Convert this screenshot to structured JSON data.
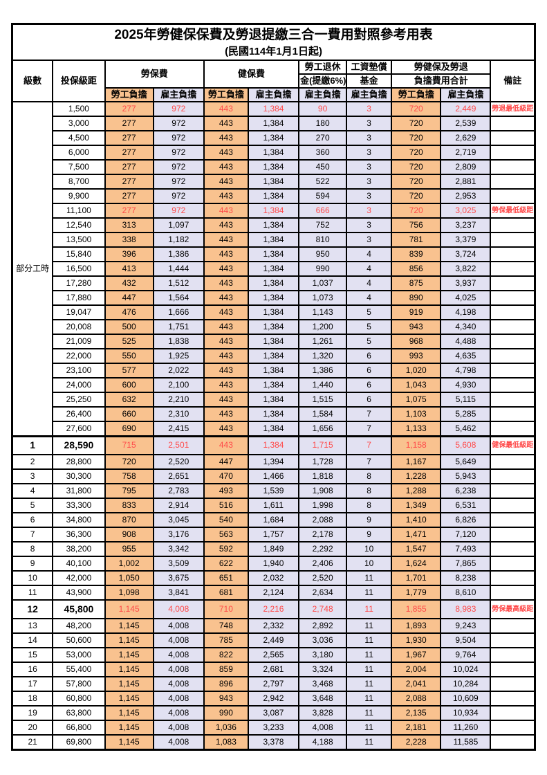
{
  "title": "2025年勞健保保費及勞退提繳三合一費用對照參考用表",
  "subtitle": "(民國114年1月1日起)",
  "colors": {
    "employee_bg": "#F9C28F",
    "employer_bg": "#E2E1F2",
    "highlight_text": "#FF4A4A",
    "border": "#000000"
  },
  "header": {
    "level": "級數",
    "bracket": "投保級距",
    "labor": "勞保費",
    "health": "健保費",
    "pension_line1": "勞工退休",
    "pension_line2": "金(提繳6%)",
    "wage_fund_line1": "工資墊償",
    "wage_fund_line2": "基金",
    "total_line1": "勞健保及勞退",
    "total_line2": "負擔費用合計",
    "remark": "備註",
    "employee_share": "勞工負擔",
    "employer_share": "雇主負擔"
  },
  "part_time_label": "部分工時",
  "rows": [
    {
      "lv": "",
      "bracket": "1,500",
      "c": [
        "277",
        "972",
        "443",
        "1,384",
        "90",
        "3",
        "720",
        "2,449"
      ],
      "note": "勞退最低級距",
      "hl": true,
      "emph": false
    },
    {
      "lv": "",
      "bracket": "3,000",
      "c": [
        "277",
        "972",
        "443",
        "1,384",
        "180",
        "3",
        "720",
        "2,539"
      ],
      "note": "",
      "hl": false,
      "emph": false
    },
    {
      "lv": "",
      "bracket": "4,500",
      "c": [
        "277",
        "972",
        "443",
        "1,384",
        "270",
        "3",
        "720",
        "2,629"
      ],
      "note": "",
      "hl": false,
      "emph": false
    },
    {
      "lv": "",
      "bracket": "6,000",
      "c": [
        "277",
        "972",
        "443",
        "1,384",
        "360",
        "3",
        "720",
        "2,719"
      ],
      "note": "",
      "hl": false,
      "emph": false
    },
    {
      "lv": "",
      "bracket": "7,500",
      "c": [
        "277",
        "972",
        "443",
        "1,384",
        "450",
        "3",
        "720",
        "2,809"
      ],
      "note": "",
      "hl": false,
      "emph": false
    },
    {
      "lv": "",
      "bracket": "8,700",
      "c": [
        "277",
        "972",
        "443",
        "1,384",
        "522",
        "3",
        "720",
        "2,881"
      ],
      "note": "",
      "hl": false,
      "emph": false
    },
    {
      "lv": "",
      "bracket": "9,900",
      "c": [
        "277",
        "972",
        "443",
        "1,384",
        "594",
        "3",
        "720",
        "2,953"
      ],
      "note": "",
      "hl": false,
      "emph": false
    },
    {
      "lv": "",
      "bracket": "11,100",
      "c": [
        "277",
        "972",
        "443",
        "1,384",
        "666",
        "3",
        "720",
        "3,025"
      ],
      "note": "勞保最低級距",
      "hl": true,
      "emph": false
    },
    {
      "lv": "",
      "bracket": "12,540",
      "c": [
        "313",
        "1,097",
        "443",
        "1,384",
        "752",
        "3",
        "756",
        "3,237"
      ],
      "note": "",
      "hl": false,
      "emph": false
    },
    {
      "lv": "",
      "bracket": "13,500",
      "c": [
        "338",
        "1,182",
        "443",
        "1,384",
        "810",
        "3",
        "781",
        "3,379"
      ],
      "note": "",
      "hl": false,
      "emph": false
    },
    {
      "lv": "",
      "bracket": "15,840",
      "c": [
        "396",
        "1,386",
        "443",
        "1,384",
        "950",
        "4",
        "839",
        "3,724"
      ],
      "note": "",
      "hl": false,
      "emph": false
    },
    {
      "lv": "",
      "bracket": "16,500",
      "c": [
        "413",
        "1,444",
        "443",
        "1,384",
        "990",
        "4",
        "856",
        "3,822"
      ],
      "note": "",
      "hl": false,
      "emph": false
    },
    {
      "lv": "",
      "bracket": "17,280",
      "c": [
        "432",
        "1,512",
        "443",
        "1,384",
        "1,037",
        "4",
        "875",
        "3,937"
      ],
      "note": "",
      "hl": false,
      "emph": false
    },
    {
      "lv": "",
      "bracket": "17,880",
      "c": [
        "447",
        "1,564",
        "443",
        "1,384",
        "1,073",
        "4",
        "890",
        "4,025"
      ],
      "note": "",
      "hl": false,
      "emph": false
    },
    {
      "lv": "",
      "bracket": "19,047",
      "c": [
        "476",
        "1,666",
        "443",
        "1,384",
        "1,143",
        "5",
        "919",
        "4,198"
      ],
      "note": "",
      "hl": false,
      "emph": false
    },
    {
      "lv": "",
      "bracket": "20,008",
      "c": [
        "500",
        "1,751",
        "443",
        "1,384",
        "1,200",
        "5",
        "943",
        "4,340"
      ],
      "note": "",
      "hl": false,
      "emph": false
    },
    {
      "lv": "",
      "bracket": "21,009",
      "c": [
        "525",
        "1,838",
        "443",
        "1,384",
        "1,261",
        "5",
        "968",
        "4,488"
      ],
      "note": "",
      "hl": false,
      "emph": false
    },
    {
      "lv": "",
      "bracket": "22,000",
      "c": [
        "550",
        "1,925",
        "443",
        "1,384",
        "1,320",
        "6",
        "993",
        "4,635"
      ],
      "note": "",
      "hl": false,
      "emph": false
    },
    {
      "lv": "",
      "bracket": "23,100",
      "c": [
        "577",
        "2,022",
        "443",
        "1,384",
        "1,386",
        "6",
        "1,020",
        "4,798"
      ],
      "note": "",
      "hl": false,
      "emph": false
    },
    {
      "lv": "",
      "bracket": "24,000",
      "c": [
        "600",
        "2,100",
        "443",
        "1,384",
        "1,440",
        "6",
        "1,043",
        "4,930"
      ],
      "note": "",
      "hl": false,
      "emph": false
    },
    {
      "lv": "",
      "bracket": "25,250",
      "c": [
        "632",
        "2,210",
        "443",
        "1,384",
        "1,515",
        "6",
        "1,075",
        "5,115"
      ],
      "note": "",
      "hl": false,
      "emph": false
    },
    {
      "lv": "",
      "bracket": "26,400",
      "c": [
        "660",
        "2,310",
        "443",
        "1,384",
        "1,584",
        "7",
        "1,103",
        "5,285"
      ],
      "note": "",
      "hl": false,
      "emph": false
    },
    {
      "lv": "",
      "bracket": "27,600",
      "c": [
        "690",
        "2,415",
        "443",
        "1,384",
        "1,656",
        "7",
        "1,133",
        "5,462"
      ],
      "note": "",
      "hl": false,
      "emph": false
    },
    {
      "lv": "1",
      "bracket": "28,590",
      "c": [
        "715",
        "2,501",
        "443",
        "1,384",
        "1,715",
        "7",
        "1,158",
        "5,608"
      ],
      "note": "健保最低級距",
      "hl": true,
      "emph": true
    },
    {
      "lv": "2",
      "bracket": "28,800",
      "c": [
        "720",
        "2,520",
        "447",
        "1,394",
        "1,728",
        "7",
        "1,167",
        "5,649"
      ],
      "note": "",
      "hl": false,
      "emph": false
    },
    {
      "lv": "3",
      "bracket": "30,300",
      "c": [
        "758",
        "2,651",
        "470",
        "1,466",
        "1,818",
        "8",
        "1,228",
        "5,943"
      ],
      "note": "",
      "hl": false,
      "emph": false
    },
    {
      "lv": "4",
      "bracket": "31,800",
      "c": [
        "795",
        "2,783",
        "493",
        "1,539",
        "1,908",
        "8",
        "1,288",
        "6,238"
      ],
      "note": "",
      "hl": false,
      "emph": false
    },
    {
      "lv": "5",
      "bracket": "33,300",
      "c": [
        "833",
        "2,914",
        "516",
        "1,611",
        "1,998",
        "8",
        "1,349",
        "6,531"
      ],
      "note": "",
      "hl": false,
      "emph": false
    },
    {
      "lv": "6",
      "bracket": "34,800",
      "c": [
        "870",
        "3,045",
        "540",
        "1,684",
        "2,088",
        "9",
        "1,410",
        "6,826"
      ],
      "note": "",
      "hl": false,
      "emph": false
    },
    {
      "lv": "7",
      "bracket": "36,300",
      "c": [
        "908",
        "3,176",
        "563",
        "1,757",
        "2,178",
        "9",
        "1,471",
        "7,120"
      ],
      "note": "",
      "hl": false,
      "emph": false
    },
    {
      "lv": "8",
      "bracket": "38,200",
      "c": [
        "955",
        "3,342",
        "592",
        "1,849",
        "2,292",
        "10",
        "1,547",
        "7,493"
      ],
      "note": "",
      "hl": false,
      "emph": false
    },
    {
      "lv": "9",
      "bracket": "40,100",
      "c": [
        "1,002",
        "3,509",
        "622",
        "1,940",
        "2,406",
        "10",
        "1,624",
        "7,865"
      ],
      "note": "",
      "hl": false,
      "emph": false
    },
    {
      "lv": "10",
      "bracket": "42,000",
      "c": [
        "1,050",
        "3,675",
        "651",
        "2,032",
        "2,520",
        "11",
        "1,701",
        "8,238"
      ],
      "note": "",
      "hl": false,
      "emph": false
    },
    {
      "lv": "11",
      "bracket": "43,900",
      "c": [
        "1,098",
        "3,841",
        "681",
        "2,124",
        "2,634",
        "11",
        "1,779",
        "8,610"
      ],
      "note": "",
      "hl": false,
      "emph": false
    },
    {
      "lv": "12",
      "bracket": "45,800",
      "c": [
        "1,145",
        "4,008",
        "710",
        "2,216",
        "2,748",
        "11",
        "1,855",
        "8,983"
      ],
      "note": "勞保最高級距",
      "hl": true,
      "emph": true
    },
    {
      "lv": "13",
      "bracket": "48,200",
      "c": [
        "1,145",
        "4,008",
        "748",
        "2,332",
        "2,892",
        "11",
        "1,893",
        "9,243"
      ],
      "note": "",
      "hl": false,
      "emph": false
    },
    {
      "lv": "14",
      "bracket": "50,600",
      "c": [
        "1,145",
        "4,008",
        "785",
        "2,449",
        "3,036",
        "11",
        "1,930",
        "9,504"
      ],
      "note": "",
      "hl": false,
      "emph": false
    },
    {
      "lv": "15",
      "bracket": "53,000",
      "c": [
        "1,145",
        "4,008",
        "822",
        "2,565",
        "3,180",
        "11",
        "1,967",
        "9,764"
      ],
      "note": "",
      "hl": false,
      "emph": false
    },
    {
      "lv": "16",
      "bracket": "55,400",
      "c": [
        "1,145",
        "4,008",
        "859",
        "2,681",
        "3,324",
        "11",
        "2,004",
        "10,024"
      ],
      "note": "",
      "hl": false,
      "emph": false
    },
    {
      "lv": "17",
      "bracket": "57,800",
      "c": [
        "1,145",
        "4,008",
        "896",
        "2,797",
        "3,468",
        "11",
        "2,041",
        "10,284"
      ],
      "note": "",
      "hl": false,
      "emph": false
    },
    {
      "lv": "18",
      "bracket": "60,800",
      "c": [
        "1,145",
        "4,008",
        "943",
        "2,942",
        "3,648",
        "11",
        "2,088",
        "10,609"
      ],
      "note": "",
      "hl": false,
      "emph": false
    },
    {
      "lv": "19",
      "bracket": "63,800",
      "c": [
        "1,145",
        "4,008",
        "990",
        "3,087",
        "3,828",
        "11",
        "2,135",
        "10,934"
      ],
      "note": "",
      "hl": false,
      "emph": false
    },
    {
      "lv": "20",
      "bracket": "66,800",
      "c": [
        "1,145",
        "4,008",
        "1,036",
        "3,233",
        "4,008",
        "11",
        "2,181",
        "11,260"
      ],
      "note": "",
      "hl": false,
      "emph": false
    },
    {
      "lv": "21",
      "bracket": "69,800",
      "c": [
        "1,145",
        "4,008",
        "1,083",
        "3,378",
        "4,188",
        "11",
        "2,228",
        "11,585"
      ],
      "note": "",
      "hl": false,
      "emph": false
    }
  ]
}
